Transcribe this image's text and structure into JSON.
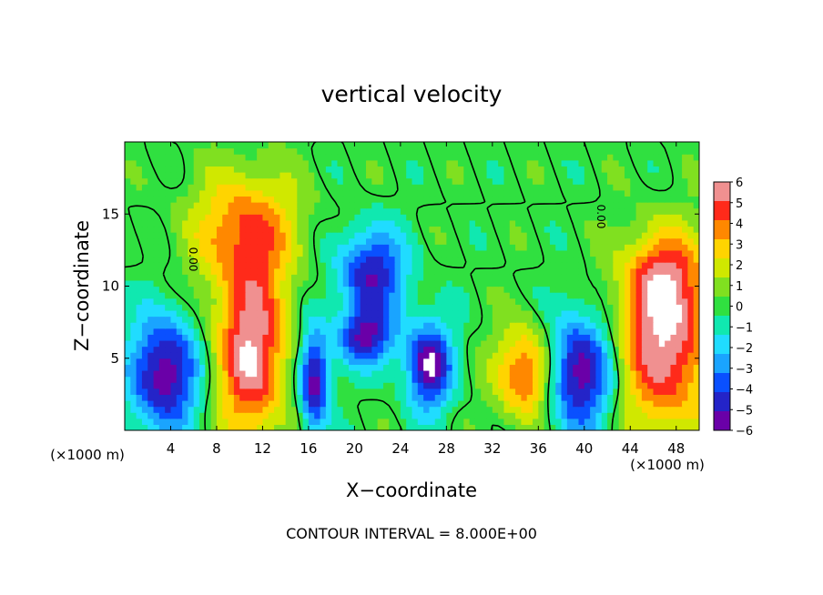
{
  "chart_data": {
    "type": "heatmap",
    "title": "vertical velocity",
    "xlabel": "X−coordinate",
    "ylabel": "Z−coordinate",
    "x_unit_left": "(×1000 m)",
    "x_unit_right": "(×1000 m)",
    "footer": "CONTOUR INTERVAL = 8.000E+00",
    "contour_label": "0.00",
    "xlim": [
      0,
      50
    ],
    "ylim": [
      0,
      20
    ],
    "x_ticks": [
      "4",
      "8",
      "12",
      "16",
      "20",
      "24",
      "28",
      "32",
      "36",
      "40",
      "44",
      "48"
    ],
    "y_ticks": [
      "5",
      "10",
      "15"
    ],
    "colorbar": {
      "range": [
        -6,
        6
      ],
      "labels": [
        "6",
        "5",
        "4",
        "3",
        "2",
        "1",
        "0",
        "−1",
        "−2",
        "−3",
        "−4",
        "−5",
        "−6"
      ],
      "colors": [
        "#6a00a8",
        "#2424c8",
        "#0a50ff",
        "#1aa4ff",
        "#20dcff",
        "#10e8b0",
        "#30e040",
        "#80e020",
        "#d0e800",
        "#ffd400",
        "#ff8800",
        "#ff2a1a",
        "#f09090"
      ]
    },
    "features": [
      {
        "kind": "updraft",
        "x": 11,
        "z": 5.5,
        "rx": 3.2,
        "rz": 6,
        "peak": 6
      },
      {
        "kind": "updraft",
        "x": 47,
        "z": 6,
        "rx": 4,
        "rz": 6,
        "peak": 6
      },
      {
        "kind": "updraft",
        "x": 35,
        "z": 4,
        "rx": 2.6,
        "rz": 3.2,
        "peak": 5
      },
      {
        "kind": "updraft-anvil",
        "x": 10.5,
        "z": 14,
        "rx": 4.5,
        "rz": 4,
        "peak": 4
      },
      {
        "kind": "updraft-anvil",
        "x": 47,
        "z": 11,
        "rx": 3.5,
        "rz": 3,
        "peak": 3
      },
      {
        "kind": "downdraft",
        "x": 3.5,
        "z": 4,
        "rx": 3,
        "rz": 4,
        "peak": -6
      },
      {
        "kind": "downdraft",
        "x": 16.5,
        "z": 3.5,
        "rx": 1.3,
        "rz": 3.5,
        "peak": -6
      },
      {
        "kind": "downdraft",
        "x": 21.5,
        "z": 11,
        "rx": 3,
        "rz": 3,
        "peak": -5
      },
      {
        "kind": "downdraft",
        "x": 26.5,
        "z": 4.5,
        "rx": 2,
        "rz": 3,
        "peak": -6
      },
      {
        "kind": "downdraft",
        "x": 39.5,
        "z": 4,
        "rx": 3,
        "rz": 4,
        "peak": -6
      },
      {
        "kind": "downdraft",
        "x": 21,
        "z": 6.5,
        "rx": 2.5,
        "rz": 2,
        "peak": -5
      }
    ]
  }
}
